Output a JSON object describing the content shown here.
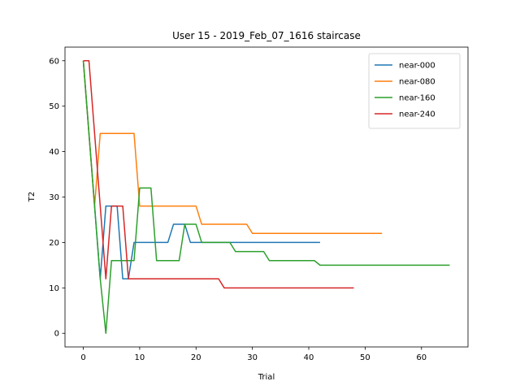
{
  "chart_data": {
    "type": "line",
    "title": "User 15 - 2019_Feb_07_1616 staircase",
    "xlabel": "Trial",
    "ylabel": "T2",
    "xlim": [
      -3.25,
      68.25
    ],
    "ylim": [
      -3,
      63
    ],
    "xticks": [
      0,
      10,
      20,
      30,
      40,
      50,
      60
    ],
    "yticks": [
      0,
      10,
      20,
      30,
      40,
      50,
      60
    ],
    "grid": false,
    "legend_position": "upper right",
    "series": [
      {
        "name": "near-000",
        "color": "#1f77b4",
        "points": [
          [
            0,
            60
          ],
          [
            1,
            44
          ],
          [
            2,
            28
          ],
          [
            3,
            12
          ],
          [
            4,
            28
          ],
          [
            5,
            28
          ],
          [
            6,
            28
          ],
          [
            7,
            12
          ],
          [
            8,
            12
          ],
          [
            9,
            20
          ],
          [
            10,
            20
          ],
          [
            11,
            20
          ],
          [
            12,
            20
          ],
          [
            13,
            20
          ],
          [
            14,
            20
          ],
          [
            15,
            20
          ],
          [
            16,
            24
          ],
          [
            17,
            24
          ],
          [
            18,
            24
          ],
          [
            19,
            20
          ],
          [
            20,
            20
          ],
          [
            21,
            20
          ],
          [
            22,
            20
          ],
          [
            23,
            20
          ],
          [
            24,
            20
          ],
          [
            25,
            20
          ],
          [
            26,
            20
          ],
          [
            27,
            20
          ],
          [
            28,
            20
          ],
          [
            29,
            20
          ],
          [
            30,
            20
          ],
          [
            31,
            20
          ],
          [
            32,
            20
          ],
          [
            33,
            20
          ],
          [
            34,
            20
          ],
          [
            35,
            20
          ],
          [
            36,
            20
          ],
          [
            37,
            20
          ],
          [
            38,
            20
          ],
          [
            39,
            20
          ],
          [
            40,
            20
          ],
          [
            41,
            20
          ],
          [
            42,
            20
          ]
        ]
      },
      {
        "name": "near-080",
        "color": "#ff7f0e",
        "points": [
          [
            0,
            60
          ],
          [
            1,
            44
          ],
          [
            2,
            28
          ],
          [
            3,
            44
          ],
          [
            4,
            44
          ],
          [
            5,
            44
          ],
          [
            6,
            44
          ],
          [
            7,
            44
          ],
          [
            8,
            44
          ],
          [
            9,
            44
          ],
          [
            10,
            28
          ],
          [
            11,
            28
          ],
          [
            12,
            28
          ],
          [
            13,
            28
          ],
          [
            14,
            28
          ],
          [
            15,
            28
          ],
          [
            16,
            28
          ],
          [
            17,
            28
          ],
          [
            18,
            28
          ],
          [
            19,
            28
          ],
          [
            20,
            28
          ],
          [
            21,
            24
          ],
          [
            22,
            24
          ],
          [
            23,
            24
          ],
          [
            24,
            24
          ],
          [
            25,
            24
          ],
          [
            26,
            24
          ],
          [
            27,
            24
          ],
          [
            28,
            24
          ],
          [
            29,
            24
          ],
          [
            30,
            22
          ],
          [
            31,
            22
          ],
          [
            32,
            22
          ],
          [
            33,
            22
          ],
          [
            34,
            22
          ],
          [
            35,
            22
          ],
          [
            36,
            22
          ],
          [
            37,
            22
          ],
          [
            38,
            22
          ],
          [
            39,
            22
          ],
          [
            40,
            22
          ],
          [
            41,
            22
          ],
          [
            42,
            22
          ],
          [
            43,
            22
          ],
          [
            44,
            22
          ],
          [
            45,
            22
          ],
          [
            46,
            22
          ],
          [
            47,
            22
          ],
          [
            48,
            22
          ],
          [
            49,
            22
          ],
          [
            50,
            22
          ],
          [
            51,
            22
          ],
          [
            52,
            22
          ],
          [
            53,
            22
          ]
        ]
      },
      {
        "name": "near-160",
        "color": "#2ca02c",
        "points": [
          [
            0,
            60
          ],
          [
            1,
            44
          ],
          [
            2,
            28
          ],
          [
            3,
            12
          ],
          [
            4,
            0
          ],
          [
            5,
            16
          ],
          [
            6,
            16
          ],
          [
            7,
            16
          ],
          [
            8,
            16
          ],
          [
            9,
            16
          ],
          [
            10,
            32
          ],
          [
            11,
            32
          ],
          [
            12,
            32
          ],
          [
            13,
            16
          ],
          [
            14,
            16
          ],
          [
            15,
            16
          ],
          [
            16,
            16
          ],
          [
            17,
            16
          ],
          [
            18,
            24
          ],
          [
            19,
            24
          ],
          [
            20,
            24
          ],
          [
            21,
            20
          ],
          [
            22,
            20
          ],
          [
            23,
            20
          ],
          [
            24,
            20
          ],
          [
            25,
            20
          ],
          [
            26,
            20
          ],
          [
            27,
            18
          ],
          [
            28,
            18
          ],
          [
            29,
            18
          ],
          [
            30,
            18
          ],
          [
            31,
            18
          ],
          [
            32,
            18
          ],
          [
            33,
            16
          ],
          [
            34,
            16
          ],
          [
            35,
            16
          ],
          [
            36,
            16
          ],
          [
            37,
            16
          ],
          [
            38,
            16
          ],
          [
            39,
            16
          ],
          [
            40,
            16
          ],
          [
            41,
            16
          ],
          [
            42,
            15
          ],
          [
            43,
            15
          ],
          [
            44,
            15
          ],
          [
            45,
            15
          ],
          [
            46,
            15
          ],
          [
            47,
            15
          ],
          [
            48,
            15
          ],
          [
            49,
            15
          ],
          [
            50,
            15
          ],
          [
            51,
            15
          ],
          [
            52,
            15
          ],
          [
            53,
            15
          ],
          [
            54,
            15
          ],
          [
            55,
            15
          ],
          [
            56,
            15
          ],
          [
            57,
            15
          ],
          [
            58,
            15
          ],
          [
            59,
            15
          ],
          [
            60,
            15
          ],
          [
            61,
            15
          ],
          [
            62,
            15
          ],
          [
            63,
            15
          ],
          [
            64,
            15
          ],
          [
            65,
            15
          ]
        ]
      },
      {
        "name": "near-240",
        "color": "#d62728",
        "points": [
          [
            0,
            60
          ],
          [
            1,
            60
          ],
          [
            2,
            44
          ],
          [
            3,
            28
          ],
          [
            4,
            12
          ],
          [
            5,
            28
          ],
          [
            6,
            28
          ],
          [
            7,
            28
          ],
          [
            8,
            12
          ],
          [
            9,
            12
          ],
          [
            10,
            12
          ],
          [
            11,
            12
          ],
          [
            12,
            12
          ],
          [
            13,
            12
          ],
          [
            14,
            12
          ],
          [
            15,
            12
          ],
          [
            16,
            12
          ],
          [
            17,
            12
          ],
          [
            18,
            12
          ],
          [
            19,
            12
          ],
          [
            20,
            12
          ],
          [
            21,
            12
          ],
          [
            22,
            12
          ],
          [
            23,
            12
          ],
          [
            24,
            12
          ],
          [
            25,
            10
          ],
          [
            26,
            10
          ],
          [
            27,
            10
          ],
          [
            28,
            10
          ],
          [
            29,
            10
          ],
          [
            30,
            10
          ],
          [
            31,
            10
          ],
          [
            32,
            10
          ],
          [
            33,
            10
          ],
          [
            34,
            10
          ],
          [
            35,
            10
          ],
          [
            36,
            10
          ],
          [
            37,
            10
          ],
          [
            38,
            10
          ],
          [
            39,
            10
          ],
          [
            40,
            10
          ],
          [
            41,
            10
          ],
          [
            42,
            10
          ],
          [
            43,
            10
          ],
          [
            44,
            10
          ],
          [
            45,
            10
          ],
          [
            46,
            10
          ],
          [
            47,
            10
          ],
          [
            48,
            10
          ]
        ]
      }
    ]
  }
}
